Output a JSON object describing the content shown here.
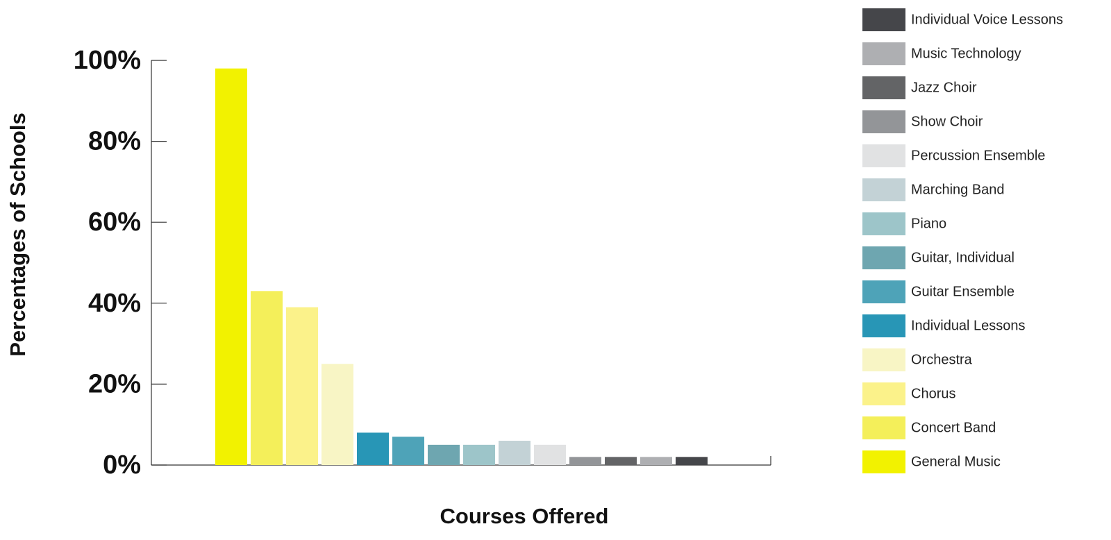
{
  "chart_data": {
    "type": "bar",
    "xlabel": "Courses Offered",
    "ylabel": "Percentages of Schools",
    "ylim": [
      0,
      100
    ],
    "yticks": [
      {
        "value": 0,
        "label": "0%"
      },
      {
        "value": 20,
        "label": "20%"
      },
      {
        "value": 40,
        "label": "40%"
      },
      {
        "value": 60,
        "label": "60%"
      },
      {
        "value": 80,
        "label": "80%"
      },
      {
        "value": 100,
        "label": "100%"
      }
    ],
    "series": [
      {
        "name": "General Music",
        "color": "#f2f200",
        "values": [
          98
        ]
      },
      {
        "name": "Concert Band",
        "color": "#f4ef5a",
        "values": [
          43
        ]
      },
      {
        "name": "Chorus",
        "color": "#fbf28a",
        "values": [
          39
        ]
      },
      {
        "name": "Orchestra",
        "color": "#f8f5c5",
        "values": [
          25
        ]
      },
      {
        "name": "Individual Lessons",
        "color": "#2896b6",
        "values": [
          8
        ]
      },
      {
        "name": "Guitar Ensemble",
        "color": "#4ea3b8",
        "values": [
          7
        ]
      },
      {
        "name": "Guitar, Individual",
        "color": "#6ea6b0",
        "values": [
          5
        ]
      },
      {
        "name": "Piano",
        "color": "#9dc5c9",
        "values": [
          5
        ]
      },
      {
        "name": "Marching Band",
        "color": "#c3d2d6",
        "values": [
          6
        ]
      },
      {
        "name": "Percussion Ensemble",
        "color": "#e1e2e3",
        "values": [
          5
        ]
      },
      {
        "name": "Show Choir",
        "color": "#939598",
        "values": [
          2
        ]
      },
      {
        "name": "Jazz Choir",
        "color": "#636466",
        "values": [
          2
        ]
      },
      {
        "name": "Music Technology",
        "color": "#aeafb2",
        "values": [
          2
        ]
      },
      {
        "name": "Individual Voice Lessons",
        "color": "#45464a",
        "values": [
          2
        ]
      }
    ]
  }
}
